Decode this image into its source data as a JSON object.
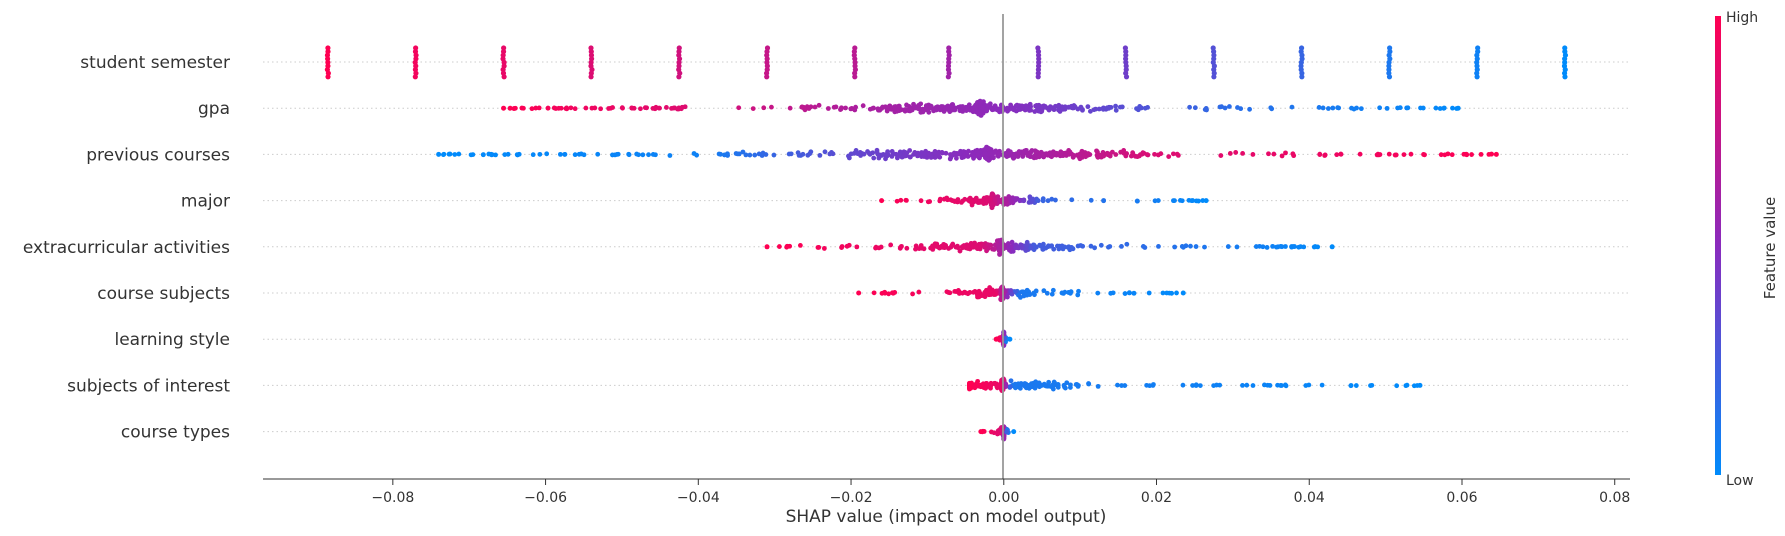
{
  "chart_data": {
    "type": "scatter",
    "subtype": "shap-beeswarm",
    "xlabel": "SHAP value (impact on model output)",
    "xlim": [
      -0.097,
      0.082
    ],
    "x_ticks": [
      -0.08,
      -0.06,
      -0.04,
      -0.02,
      0.0,
      0.02,
      0.04,
      0.06,
      0.08
    ],
    "x_tick_labels": [
      "−0.08",
      "−0.06",
      "−0.04",
      "−0.02",
      "0.00",
      "0.02",
      "0.04",
      "0.06",
      "0.08"
    ],
    "grid": false,
    "zero_line": true,
    "colorbar": {
      "label": "Feature value",
      "high_label": "High",
      "low_label": "Low",
      "high_color": "#ff0052",
      "mid_color": "#8a2bbd",
      "low_color": "#008bfb"
    },
    "features": [
      {
        "name": "student semester",
        "clusters": [
          {
            "x": -0.0885,
            "v": 1.0
          },
          {
            "x": -0.077,
            "v": 0.95
          },
          {
            "x": -0.0655,
            "v": 0.9
          },
          {
            "x": -0.054,
            "v": 0.85
          },
          {
            "x": -0.0425,
            "v": 0.8
          },
          {
            "x": -0.031,
            "v": 0.75
          },
          {
            "x": -0.0195,
            "v": 0.7
          },
          {
            "x": -0.0072,
            "v": 0.6
          },
          {
            "x": 0.0045,
            "v": 0.45
          },
          {
            "x": 0.016,
            "v": 0.4
          },
          {
            "x": 0.0275,
            "v": 0.3
          },
          {
            "x": 0.039,
            "v": 0.2
          },
          {
            "x": 0.0505,
            "v": 0.1
          },
          {
            "x": 0.062,
            "v": 0.05
          },
          {
            "x": 0.0735,
            "v": 0.0
          }
        ]
      },
      {
        "name": "gpa",
        "range": [
          -0.0655,
          0.0595
        ],
        "gradient": [
          [
            -0.0655,
            1.0
          ],
          [
            -0.04,
            0.85
          ],
          [
            -0.02,
            0.65
          ],
          [
            0.0,
            0.5
          ],
          [
            0.03,
            0.15
          ],
          [
            0.0595,
            0.0
          ]
        ],
        "center": -0.003
      },
      {
        "name": "previous courses",
        "range": [
          -0.074,
          0.0645
        ],
        "gradient": [
          [
            -0.074,
            0.0
          ],
          [
            -0.04,
            0.05
          ],
          [
            -0.02,
            0.35
          ],
          [
            0.0,
            0.55
          ],
          [
            0.02,
            0.85
          ],
          [
            0.0645,
            1.0
          ]
        ],
        "center": -0.002
      },
      {
        "name": "major",
        "range": [
          -0.016,
          0.0265
        ],
        "gradient": [
          [
            -0.016,
            1.0
          ],
          [
            -0.002,
            0.85
          ],
          [
            0.005,
            0.2
          ],
          [
            0.0265,
            0.0
          ]
        ],
        "center": -0.0015
      },
      {
        "name": "extracurricular activities",
        "range": [
          -0.031,
          0.043
        ],
        "gradient": [
          [
            -0.031,
            1.0
          ],
          [
            -0.003,
            0.85
          ],
          [
            0.004,
            0.25
          ],
          [
            0.043,
            0.0
          ]
        ],
        "center": -0.0005
      },
      {
        "name": "course subjects",
        "range": [
          -0.019,
          0.0235
        ],
        "gradient": [
          [
            -0.019,
            1.0
          ],
          [
            -0.001,
            0.9
          ],
          [
            0.002,
            0.1
          ],
          [
            0.0235,
            0.0
          ]
        ],
        "center": -0.0002
      },
      {
        "name": "learning style",
        "range": [
          -0.001,
          0.0008
        ],
        "gradient": [
          [
            -0.001,
            1.0
          ],
          [
            -0.0002,
            0.9
          ],
          [
            0.0002,
            0.05
          ],
          [
            0.0008,
            0.0
          ]
        ],
        "center": 0.0
      },
      {
        "name": "subjects of interest",
        "range": [
          -0.0045,
          0.0545
        ],
        "gradient": [
          [
            -0.0045,
            1.0
          ],
          [
            -0.0002,
            0.9
          ],
          [
            0.001,
            0.1
          ],
          [
            0.0545,
            0.0
          ]
        ],
        "center": -0.0001
      },
      {
        "name": "course types",
        "range": [
          -0.003,
          0.0013
        ],
        "gradient": [
          [
            -0.003,
            1.0
          ],
          [
            -0.0003,
            0.85
          ],
          [
            0.0005,
            0.1
          ],
          [
            0.0013,
            0.0
          ]
        ],
        "center": 0.0
      }
    ]
  }
}
